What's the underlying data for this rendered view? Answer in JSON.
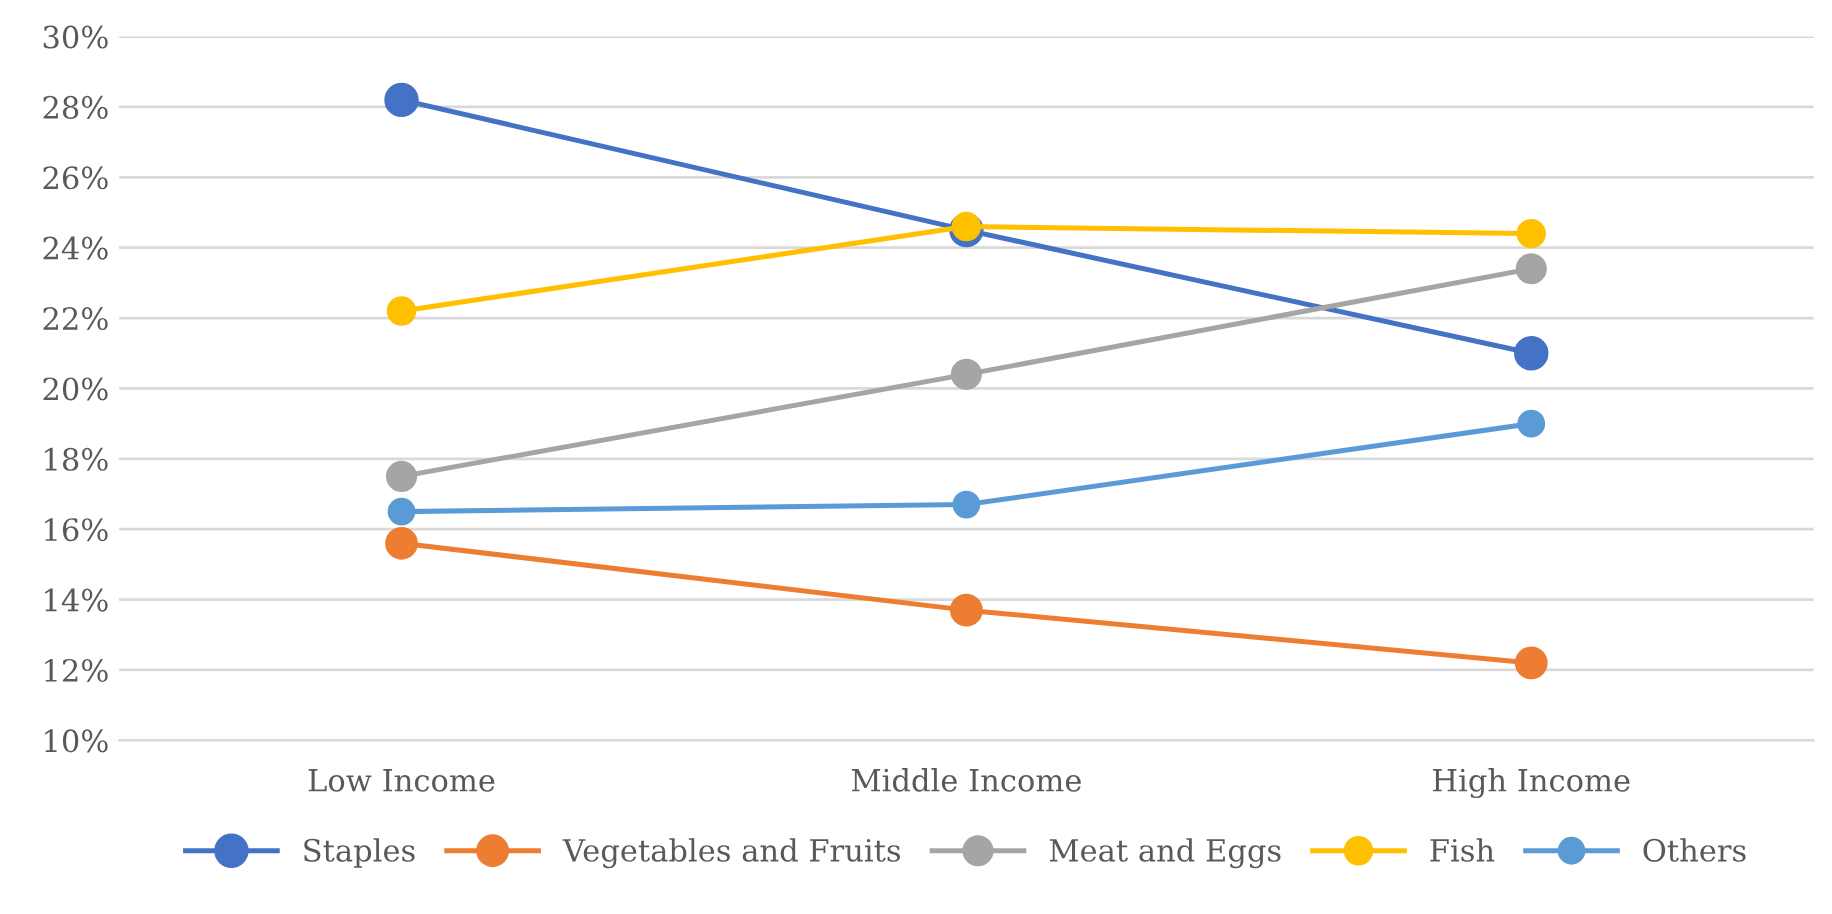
{
  "chart_data": {
    "type": "line",
    "categories": [
      "Low Income",
      "Middle Income",
      "High Income"
    ],
    "series": [
      {
        "name": "Staples",
        "color": "#4472c4",
        "values": [
          28.2,
          24.5,
          21.0
        ]
      },
      {
        "name": "Vegetables and Fruits",
        "color": "#ed7d31",
        "values": [
          15.6,
          13.7,
          12.2
        ]
      },
      {
        "name": "Meat and Eggs",
        "color": "#a5a5a5",
        "values": [
          17.5,
          20.4,
          23.4
        ]
      },
      {
        "name": "Fish",
        "color": "#ffc000",
        "values": [
          22.2,
          24.6,
          24.4
        ]
      },
      {
        "name": "Others",
        "color": "#5b9bd5",
        "values": [
          16.5,
          16.7,
          19.0
        ]
      }
    ],
    "ylim": [
      10,
      30
    ],
    "yticks": [
      {
        "value": 10,
        "label": "10%"
      },
      {
        "value": 12,
        "label": "12%"
      },
      {
        "value": 14,
        "label": "14%"
      },
      {
        "value": 16,
        "label": "16%"
      },
      {
        "value": 18,
        "label": "18%"
      },
      {
        "value": 20,
        "label": "20%"
      },
      {
        "value": 22,
        "label": "22%"
      },
      {
        "value": 24,
        "label": "24%"
      },
      {
        "value": 26,
        "label": "26%"
      },
      {
        "value": 28,
        "label": "28%"
      },
      {
        "value": 30,
        "label": "30%"
      }
    ],
    "grid": "y",
    "legend": "bottom",
    "marker": "circle",
    "line_style": "solid"
  }
}
